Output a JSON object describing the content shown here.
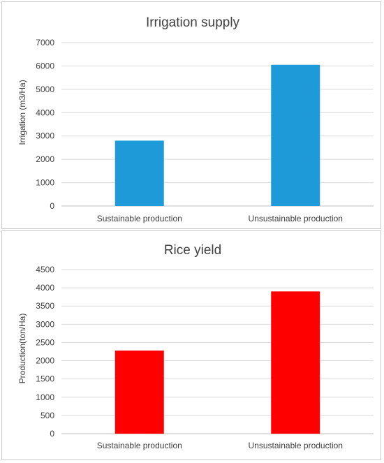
{
  "chart_data": [
    {
      "type": "bar",
      "title": "Irrigation supply",
      "ylabel": "Irrigation (m3/Ha)",
      "xlabel": "",
      "categories": [
        "Sustainable production",
        "Unsustainable production"
      ],
      "values": [
        2800,
        6050
      ],
      "ylim": [
        0,
        7000
      ],
      "yticks": [
        0,
        1000,
        2000,
        3000,
        4000,
        5000,
        6000,
        7000
      ],
      "grid": true,
      "legend": "none",
      "bar_color": "#1f9ad8"
    },
    {
      "type": "bar",
      "title": "Rice yield",
      "ylabel": "Production(ton/Ha)",
      "xlabel": "",
      "categories": [
        "Sustainable production",
        "Unsustainable production"
      ],
      "values": [
        2280,
        3900
      ],
      "ylim": [
        0,
        4500
      ],
      "yticks": [
        0,
        500,
        1000,
        1500,
        2000,
        2500,
        3000,
        3500,
        4000,
        4500
      ],
      "grid": true,
      "legend": "none",
      "bar_color": "#ff0000"
    }
  ]
}
